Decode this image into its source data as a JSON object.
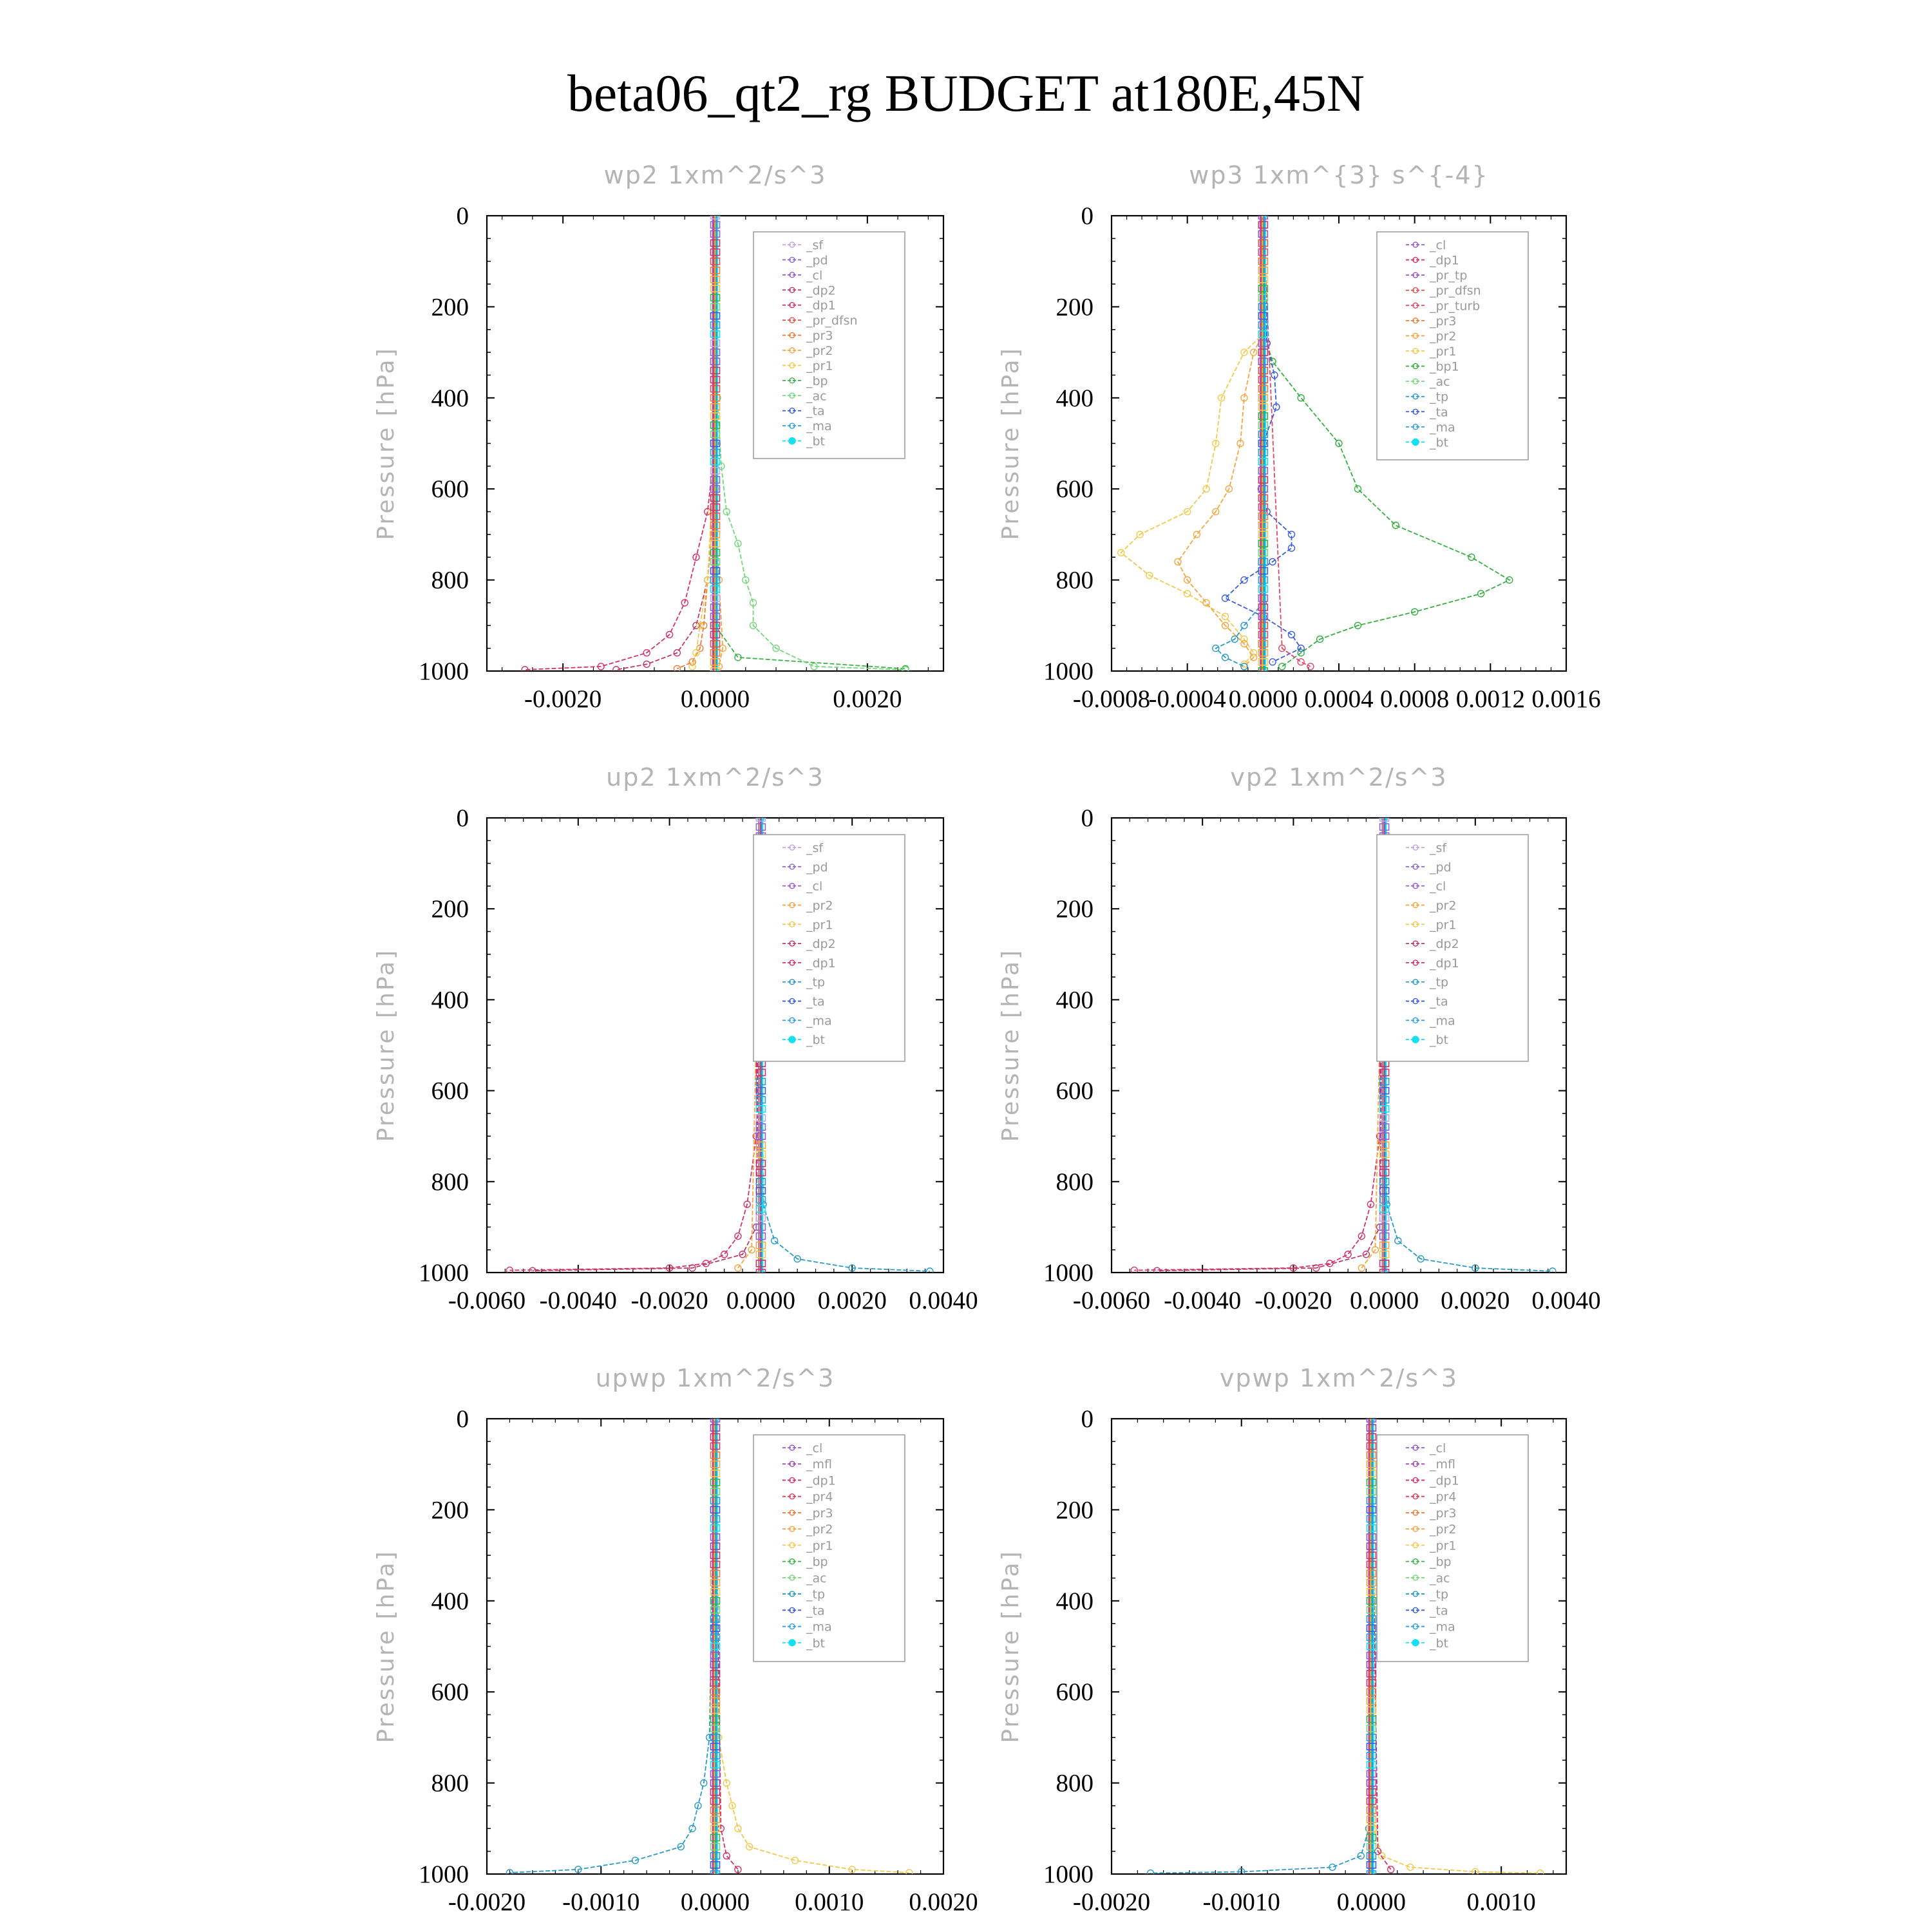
{
  "figure": {
    "title": "beta06_qt2_rg  BUDGET at180E,45N"
  },
  "colors": {
    "_sf": "#c3a7e6",
    "_pd": "#8b6bd0",
    "_cl": "#9b59d0",
    "_dp2": "#c0396b",
    "_dp1": "#d8306b",
    "_pr_dfsn": "#e2504c",
    "_pr3": "#f07a3a",
    "_pr2": "#f5a640",
    "_pr1": "#f2c94c",
    "_bp": "#3cb34a",
    "_ac": "#72d878",
    "_tp": "#2a9bc8",
    "_ta": "#3a5de0",
    "_ma": "#29a0e0",
    "_bt": "#14e0f0",
    "_mfl": "#a040b0",
    "_pr4": "#e03a5a",
    "_pr_tp": "#a050c0",
    "_pr_turb": "#e0486a",
    "_bp1": "#34b040"
  },
  "chart_data": [
    {
      "type": "line",
      "title": "wp2   1xm^2/s^3",
      "ylabel": "Pressure [hPa]",
      "xlim": [
        -0.003,
        0.003
      ],
      "ylim": [
        1000,
        0
      ],
      "xticks": [
        -0.002,
        0.0,
        0.002
      ],
      "xtick_labels": [
        "-0.0020",
        "0.0000",
        "0.0020"
      ],
      "yticks": [
        0,
        200,
        400,
        600,
        800,
        1000
      ],
      "ytick_labels": [
        "0",
        "200",
        "400",
        "600",
        "800",
        "1000"
      ],
      "legend_loc": "top-right",
      "legend": [
        "_sf",
        "_pd",
        "_cl",
        "_dp2",
        "_dp1",
        "_pr_dfsn",
        "_pr3",
        "_pr2",
        "_pr1",
        "_bp",
        "_ac",
        "_ta",
        "_ma",
        "_bt"
      ],
      "series": [
        {
          "name": "_dp1",
          "y": [
            0,
            500,
            650,
            750,
            850,
            920,
            960,
            990,
            997
          ],
          "x": [
            0,
            0,
            -0.0001,
            -0.00025,
            -0.0004,
            -0.0006,
            -0.0009,
            -0.0015,
            -0.0025
          ]
        },
        {
          "name": "_dp2",
          "y": [
            0,
            600,
            800,
            900,
            960,
            985,
            997
          ],
          "x": [
            0,
            0,
            -0.0001,
            -0.00025,
            -0.0005,
            -0.0009,
            -0.0013
          ]
        },
        {
          "name": "_pr3",
          "y": [
            0,
            600,
            800,
            900,
            950,
            980,
            995
          ],
          "x": [
            0,
            0,
            -0.0001,
            -0.00015,
            -0.0002,
            -0.0003,
            -0.0005
          ]
        },
        {
          "name": "_pr2",
          "y": [
            0,
            600,
            800,
            950,
            990
          ],
          "x": [
            0,
            0,
            5e-05,
            0.0001,
            5e-05
          ]
        },
        {
          "name": "_pr1",
          "y": [
            0,
            650,
            800,
            900,
            960,
            990
          ],
          "x": [
            0,
            -5e-05,
            -0.0001,
            -0.0002,
            -0.00025,
            -0.0003
          ]
        },
        {
          "name": "_bp",
          "y": [
            0,
            900,
            970,
            995
          ],
          "x": [
            0,
            0,
            0.0003,
            0.0025
          ]
        },
        {
          "name": "_ac",
          "y": [
            0,
            400,
            550,
            650,
            720,
            800,
            850,
            900,
            950,
            990,
            997
          ],
          "x": [
            0,
            3e-05,
            8e-05,
            0.00015,
            0.0003,
            0.0004,
            0.0005,
            0.0005,
            0.0008,
            0.0013,
            0.0025
          ]
        },
        {
          "name": "_bt",
          "y": [
            0,
            1000
          ],
          "x": [
            0,
            0
          ]
        }
      ]
    },
    {
      "type": "line",
      "title": "wp3   1xm^{3} s^{-4}",
      "ylabel": "Pressure [hPa]",
      "xlim": [
        -0.0008,
        0.0016
      ],
      "ylim": [
        1000,
        0
      ],
      "xticks": [
        -0.0008,
        -0.0004,
        0.0,
        0.0004,
        0.0008,
        0.0012,
        0.0016
      ],
      "xtick_labels": [
        "-0.0008",
        "-0.0004",
        "0.0000",
        "0.0004",
        "0.0008",
        "0.0012",
        "0.0016"
      ],
      "yticks": [
        0,
        200,
        400,
        600,
        800,
        1000
      ],
      "ytick_labels": [
        "0",
        "200",
        "400",
        "600",
        "800",
        "1000"
      ],
      "legend_loc": "top-right",
      "legend": [
        "_cl",
        "_dp1",
        "_pr_tp",
        "_pr_dfsn",
        "_pr_turb",
        "_pr3",
        "_pr2",
        "_pr1",
        "_bp1",
        "_ac",
        "_tp",
        "_ta",
        "_ma",
        "_bt"
      ],
      "series": [
        {
          "name": "_pr1",
          "y": [
            0,
            260,
            300,
            400,
            500,
            600,
            650,
            700,
            740,
            790,
            830,
            880,
            930,
            960,
            985
          ],
          "x": [
            0,
            0,
            -0.0001,
            -0.00022,
            -0.00025,
            -0.0003,
            -0.0004,
            -0.00065,
            -0.00075,
            -0.0006,
            -0.0004,
            -0.0002,
            -0.0001,
            -5e-05,
            -0.0001
          ]
        },
        {
          "name": "_pr2",
          "y": [
            0,
            260,
            300,
            400,
            500,
            600,
            650,
            700,
            760,
            800,
            850,
            900,
            940,
            970,
            990
          ],
          "x": [
            0,
            0,
            -5e-05,
            -0.0001,
            -0.00012,
            -0.00018,
            -0.00025,
            -0.00035,
            -0.00045,
            -0.0004,
            -0.0003,
            -0.0002,
            -0.0001,
            -5e-05,
            -0.0001
          ]
        },
        {
          "name": "_bp1",
          "y": [
            0,
            280,
            320,
            400,
            500,
            600,
            680,
            750,
            800,
            830,
            870,
            900,
            930,
            960,
            990
          ],
          "x": [
            0,
            2e-05,
            5e-05,
            0.0002,
            0.0004,
            0.0005,
            0.0007,
            0.0011,
            0.0013,
            0.00115,
            0.0008,
            0.0005,
            0.0003,
            0.0002,
            0.0001
          ]
        },
        {
          "name": "_ta",
          "y": [
            0,
            280,
            350,
            420,
            500,
            600,
            650,
            700,
            730,
            760,
            800,
            840,
            880,
            920,
            950,
            980
          ],
          "x": [
            0,
            2e-05,
            6e-05,
            7e-05,
            0.0,
            -1e-05,
            2e-05,
            0.00015,
            0.00015,
            5e-05,
            -0.0001,
            -0.0002,
            0.0,
            0.00015,
            0.0002,
            5e-05
          ]
        },
        {
          "name": "_tp",
          "y": [
            0,
            850,
            900,
            930,
            950,
            970,
            990
          ],
          "x": [
            0,
            0,
            -0.0001,
            -0.00015,
            -0.00025,
            -0.0002,
            -0.0001
          ]
        },
        {
          "name": "_pr_turb",
          "y": [
            0,
            950,
            980,
            990
          ],
          "x": [
            0,
            0.0001,
            0.0002,
            0.00025
          ]
        },
        {
          "name": "_bt",
          "y": [
            0,
            1000
          ],
          "x": [
            0,
            0
          ]
        }
      ]
    },
    {
      "type": "line",
      "title": "up2   1xm^2/s^3",
      "ylabel": "Pressure [hPa]",
      "xlim": [
        -0.006,
        0.004
      ],
      "ylim": [
        1000,
        0
      ],
      "xticks": [
        -0.006,
        -0.004,
        -0.002,
        0.0,
        0.002,
        0.004
      ],
      "xtick_labels": [
        "-0.0060",
        "-0.0040",
        "-0.0020",
        "0.0000",
        "0.0020",
        "0.0040"
      ],
      "yticks": [
        0,
        200,
        400,
        600,
        800,
        1000
      ],
      "ytick_labels": [
        "0",
        "200",
        "400",
        "600",
        "800",
        "1000"
      ],
      "legend_loc": "top-right",
      "legend": [
        "_sf",
        "_pd",
        "_cl",
        "_pr2",
        "_pr1",
        "_dp2",
        "_dp1",
        "_tp",
        "_ta",
        "_ma",
        "_bt"
      ],
      "series": [
        {
          "name": "_dp1",
          "y": [
            0,
            700,
            850,
            920,
            960,
            980,
            990,
            995
          ],
          "x": [
            0,
            -0.0001,
            -0.0003,
            -0.0005,
            -0.0008,
            -0.0012,
            -0.002,
            -0.0055
          ]
        },
        {
          "name": "_dp2",
          "y": [
            0,
            900,
            960,
            990,
            996
          ],
          "x": [
            0,
            -0.0001,
            -0.0004,
            -0.0015,
            -0.005
          ]
        },
        {
          "name": "_tp",
          "y": [
            0,
            850,
            930,
            970,
            990,
            997
          ],
          "x": [
            0,
            5e-05,
            0.0003,
            0.0008,
            0.002,
            0.0037
          ]
        },
        {
          "name": "_pr2",
          "y": [
            0,
            950,
            990
          ],
          "x": [
            0,
            -0.0002,
            -0.0005
          ]
        },
        {
          "name": "_bt",
          "y": [
            0,
            1000
          ],
          "x": [
            0,
            0
          ]
        }
      ]
    },
    {
      "type": "line",
      "title": "vp2   1xm^2/s^3",
      "ylabel": "Pressure [hPa]",
      "xlim": [
        -0.006,
        0.004
      ],
      "ylim": [
        1000,
        0
      ],
      "xticks": [
        -0.006,
        -0.004,
        -0.002,
        0.0,
        0.002,
        0.004
      ],
      "xtick_labels": [
        "-0.0060",
        "-0.0040",
        "-0.0020",
        "0.0000",
        "0.0020",
        "0.0040"
      ],
      "yticks": [
        0,
        200,
        400,
        600,
        800,
        1000
      ],
      "ytick_labels": [
        "0",
        "200",
        "400",
        "600",
        "800",
        "1000"
      ],
      "legend_loc": "top-right",
      "legend": [
        "_sf",
        "_pd",
        "_cl",
        "_pr2",
        "_pr1",
        "_dp2",
        "_dp1",
        "_tp",
        "_ta",
        "_ma",
        "_bt"
      ],
      "series": [
        {
          "name": "_dp1",
          "y": [
            0,
            700,
            850,
            920,
            960,
            980,
            990,
            995
          ],
          "x": [
            0,
            -0.0001,
            -0.0003,
            -0.0005,
            -0.0008,
            -0.0012,
            -0.002,
            -0.0055
          ]
        },
        {
          "name": "_dp2",
          "y": [
            0,
            900,
            960,
            990,
            996
          ],
          "x": [
            0,
            -0.0001,
            -0.0004,
            -0.0015,
            -0.005
          ]
        },
        {
          "name": "_tp",
          "y": [
            0,
            850,
            930,
            970,
            990,
            997
          ],
          "x": [
            0,
            5e-05,
            0.0003,
            0.0008,
            0.002,
            0.0037
          ]
        },
        {
          "name": "_pr2",
          "y": [
            0,
            950,
            990
          ],
          "x": [
            0,
            -0.0002,
            -0.0005
          ]
        },
        {
          "name": "_bt",
          "y": [
            0,
            1000
          ],
          "x": [
            0,
            0
          ]
        }
      ]
    },
    {
      "type": "line",
      "title": "upwp   1xm^2/s^3",
      "ylabel": "Pressure [hPa]",
      "xlim": [
        -0.002,
        0.002
      ],
      "ylim": [
        1000,
        0
      ],
      "xticks": [
        -0.002,
        -0.001,
        0.0,
        0.001,
        0.002
      ],
      "xtick_labels": [
        "-0.0020",
        "-0.0010",
        "0.0000",
        "0.0010",
        "0.0020"
      ],
      "yticks": [
        0,
        200,
        400,
        600,
        800,
        1000
      ],
      "ytick_labels": [
        "0",
        "200",
        "400",
        "600",
        "800",
        "1000"
      ],
      "legend_loc": "top-right",
      "legend": [
        "_cl",
        "_mfl",
        "_dp1",
        "_pr4",
        "_pr3",
        "_pr2",
        "_pr1",
        "_bp",
        "_ac",
        "_tp",
        "_ta",
        "_ma",
        "_bt"
      ],
      "series": [
        {
          "name": "_tp",
          "y": [
            0,
            700,
            800,
            850,
            900,
            940,
            970,
            990,
            997
          ],
          "x": [
            0,
            -5e-05,
            -0.0001,
            -0.00015,
            -0.0002,
            -0.0003,
            -0.0007,
            -0.0012,
            -0.0018
          ]
        },
        {
          "name": "_pr1",
          "y": [
            0,
            700,
            800,
            850,
            900,
            940,
            970,
            990,
            997
          ],
          "x": [
            0,
            3e-05,
            0.0001,
            0.00015,
            0.0002,
            0.0003,
            0.0007,
            0.0012,
            0.0017
          ]
        },
        {
          "name": "_dp1",
          "y": [
            0,
            900,
            960,
            990
          ],
          "x": [
            0,
            5e-05,
            0.0001,
            0.0002
          ]
        },
        {
          "name": "_bt",
          "y": [
            0,
            1000
          ],
          "x": [
            0,
            0
          ]
        }
      ]
    },
    {
      "type": "line",
      "title": "vpwp   1xm^2/s^3",
      "ylabel": "Pressure [hPa]",
      "xlim": [
        -0.002,
        0.0015
      ],
      "ylim": [
        1000,
        0
      ],
      "xticks": [
        -0.002,
        -0.001,
        0.0,
        0.001
      ],
      "xtick_labels": [
        "-0.0020",
        "-0.0010",
        "0.0000",
        "0.0010"
      ],
      "yticks": [
        0,
        200,
        400,
        600,
        800,
        1000
      ],
      "ytick_labels": [
        "0",
        "200",
        "400",
        "600",
        "800",
        "1000"
      ],
      "legend_loc": "top-right",
      "legend": [
        "_cl",
        "_mfl",
        "_dp1",
        "_pr4",
        "_pr3",
        "_pr2",
        "_pr1",
        "_bp",
        "_ac",
        "_tp",
        "_ta",
        "_ma",
        "_bt"
      ],
      "series": [
        {
          "name": "_tp",
          "y": [
            0,
            900,
            960,
            985,
            995,
            998
          ],
          "x": [
            0,
            -2e-05,
            -8e-05,
            -0.0003,
            -0.001,
            -0.0017
          ]
        },
        {
          "name": "_pr1",
          "y": [
            0,
            900,
            960,
            985,
            995,
            998
          ],
          "x": [
            0,
            2e-05,
            8e-05,
            0.0003,
            0.0008,
            0.0013
          ]
        },
        {
          "name": "_dp1",
          "y": [
            0,
            950,
            990
          ],
          "x": [
            0,
            5e-05,
            0.00015
          ]
        },
        {
          "name": "_bt",
          "y": [
            0,
            1000
          ],
          "x": [
            0,
            0
          ]
        }
      ]
    }
  ]
}
